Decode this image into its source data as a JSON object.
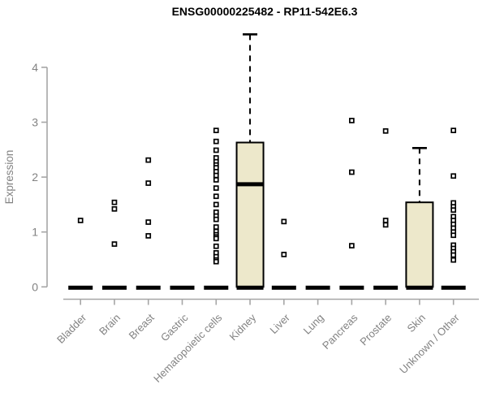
{
  "chart_data": {
    "type": "boxplot",
    "title": "ENSG00000225482 - RP11-542E6.3",
    "ylabel": "Expression",
    "xlabel": "",
    "ylim": [
      0,
      4.6
    ],
    "yticks": [
      0,
      1,
      2,
      3,
      4
    ],
    "grid": false,
    "legend": "none",
    "categories": [
      "Bladder",
      "Brain",
      "Breast",
      "Gastric",
      "Hematopoietic cells",
      "Kidney",
      "Liver",
      "Lung",
      "Pancreas",
      "Prostate",
      "Skin",
      "Unknown / Other"
    ],
    "series": [
      {
        "category": "Bladder",
        "whisker_low": 0,
        "q1": 0,
        "median": 0,
        "q3": 0,
        "whisker_high": 0,
        "outliers": [
          1.21
        ]
      },
      {
        "category": "Brain",
        "whisker_low": 0,
        "q1": 0,
        "median": 0,
        "q3": 0,
        "whisker_high": 0,
        "outliers": [
          1.54,
          1.42,
          0.78
        ]
      },
      {
        "category": "Breast",
        "whisker_low": 0,
        "q1": 0,
        "median": 0,
        "q3": 0,
        "whisker_high": 0,
        "outliers": [
          2.31,
          1.89,
          1.18,
          0.93
        ]
      },
      {
        "category": "Gastric",
        "whisker_low": 0,
        "q1": 0,
        "median": 0,
        "q3": 0,
        "whisker_high": 0,
        "outliers": []
      },
      {
        "category": "Hematopoietic cells",
        "whisker_low": 0,
        "q1": 0,
        "median": 0,
        "q3": 0,
        "whisker_high": 0,
        "outliers": [
          2.85,
          2.65,
          2.49,
          2.35,
          2.28,
          2.22,
          2.17,
          2.1,
          2.03,
          1.95,
          1.8,
          1.65,
          1.5,
          1.36,
          1.29,
          1.23,
          1.09,
          1.01,
          0.95,
          0.91,
          0.88,
          0.74,
          0.62,
          0.55,
          0.49,
          0.46
        ]
      },
      {
        "category": "Kidney",
        "whisker_low": 0,
        "q1": 0,
        "median": 1.87,
        "q3": 2.63,
        "whisker_high": 4.6,
        "outliers": []
      },
      {
        "category": "Liver",
        "whisker_low": 0,
        "q1": 0,
        "median": 0,
        "q3": 0,
        "whisker_high": 0,
        "outliers": [
          1.19,
          0.59
        ]
      },
      {
        "category": "Lung",
        "whisker_low": 0,
        "q1": 0,
        "median": 0,
        "q3": 0,
        "whisker_high": 0,
        "outliers": []
      },
      {
        "category": "Pancreas",
        "whisker_low": 0,
        "q1": 0,
        "median": 0,
        "q3": 0,
        "whisker_high": 0,
        "outliers": [
          3.03,
          2.09,
          0.75
        ]
      },
      {
        "category": "Prostate",
        "whisker_low": 0,
        "q1": 0,
        "median": 0,
        "q3": 0,
        "whisker_high": 0,
        "outliers": [
          2.84,
          1.21,
          1.13
        ]
      },
      {
        "category": "Skin",
        "whisker_low": 0,
        "q1": 0,
        "median": 0,
        "q3": 1.54,
        "whisker_high": 2.53,
        "outliers": []
      },
      {
        "category": "Unknown / Other",
        "whisker_low": 0,
        "q1": 0,
        "median": 0,
        "q3": 0,
        "whisker_high": 0,
        "outliers": [
          2.85,
          2.02,
          1.53,
          1.46,
          1.4,
          1.28,
          1.21,
          1.14,
          1.07,
          1.0,
          0.94,
          0.76,
          0.7,
          0.64,
          0.58,
          0.49
        ]
      }
    ],
    "style": {
      "box_fill": "#EDE8CB",
      "box_stroke": "#000000",
      "median_color": "#000000",
      "whisker_color": "#000000",
      "whisker_line": "dashed",
      "outlier_shape": "open-square",
      "outlier_color": "#000000",
      "axis_line_color": "#A6A6A6",
      "tick_label_color": "#828282",
      "title_color": "#000000",
      "background": "#FFFFFF"
    }
  }
}
